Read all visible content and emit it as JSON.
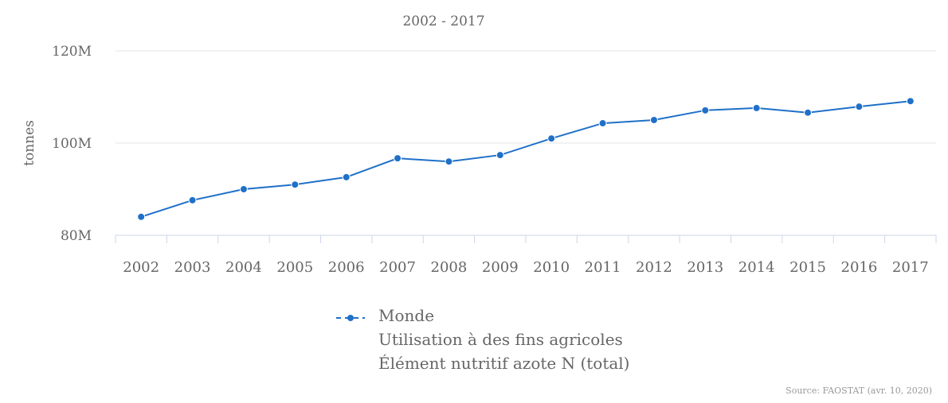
{
  "chart_data": {
    "type": "line",
    "subtitle": "2002 - 2017",
    "ylabel": "tonnes",
    "xlabel": "",
    "categories": [
      "2002",
      "2003",
      "2004",
      "2005",
      "2006",
      "2007",
      "2008",
      "2009",
      "2010",
      "2011",
      "2012",
      "2013",
      "2014",
      "2015",
      "2016",
      "2017"
    ],
    "ylim": [
      80000000,
      120000000
    ],
    "yticks": [
      {
        "value": 80000000,
        "label": "80M"
      },
      {
        "value": 100000000,
        "label": "100M"
      },
      {
        "value": 120000000,
        "label": "120M"
      }
    ],
    "grid": true,
    "series": [
      {
        "name": "Monde\nUtilisation à des fins agricoles\nÉlément nutritif azote N (total)",
        "color": "#1f70c8",
        "values": [
          84000000,
          87600000,
          90000000,
          91000000,
          92600000,
          96700000,
          96000000,
          97400000,
          101000000,
          104300000,
          105000000,
          107100000,
          107600000,
          106600000,
          107900000,
          109100000
        ]
      }
    ],
    "legend": {
      "placement": "bottom-center",
      "lines": [
        "Monde",
        "Utilisation à des fins agricoles",
        "Élément nutritif azote N (total)"
      ]
    },
    "source": "Source: FAOSTAT (avr. 10, 2020)"
  }
}
